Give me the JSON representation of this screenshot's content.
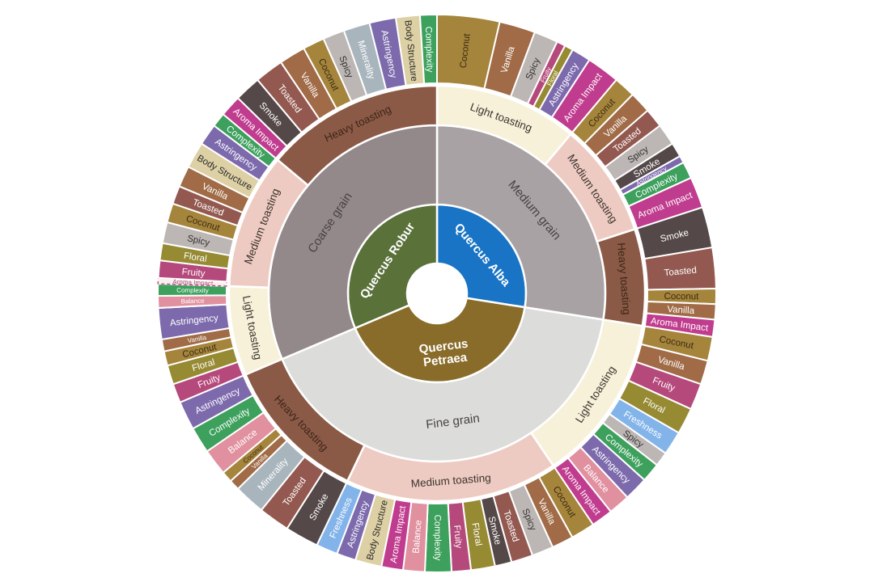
{
  "page": {
    "background": "#ffffff"
  },
  "chart_data": {
    "type": "sunburst",
    "title": "",
    "angle_unit": "degrees clockwise from 12 o'clock",
    "levels": [
      "species",
      "grain",
      "toasting",
      "flavor"
    ],
    "toasting_colors": {
      "Light toasting": "#f7f1da",
      "Medium toasting": "#eecbc2",
      "Heavy toasting": "#8b5a46"
    },
    "flavor_colors": {
      "Coconut": "#a5843c",
      "Vanilla": "#a06b46",
      "Spicy": "#bcb7b5",
      "Fruity": "#b5497b",
      "Floral": "#968a33",
      "Astringency": "#7c6aac",
      "Aroma Impact": "#c03c8e",
      "Complexity": "#3da05c",
      "Smoke": "#544948",
      "Toasted": "#935950",
      "Body Structure": "#ddd0a4",
      "Minerality": "#a9b5bd",
      "Freshness": "#82b4ea",
      "Balance": "#e0909f"
    },
    "flavor_text_colors": {
      "Coconut": "#3b2d12",
      "Spicy": "#33302e",
      "Body Structure": "#2b2b2b",
      "default": "#ffffff"
    },
    "species": [
      {
        "label": "Quercus Alba",
        "color": "#1974c5",
        "start_deg": 0,
        "end_deg": 99,
        "grain": {
          "label": "Medium grain",
          "color": "#a9a2a4"
        },
        "toastings": [
          {
            "label": "Light toasting",
            "start_deg": 0,
            "end_deg": 40,
            "flavors": [
              {
                "label": "Coconut",
                "span": 13
              },
              {
                "label": "Vanilla",
                "span": 7.5
              },
              {
                "label": "Spicy",
                "span": 5
              },
              {
                "label": "Fruity",
                "span": 1.8
              },
              {
                "label": "Floral",
                "span": 1.8
              },
              {
                "label": "Astringency",
                "span": 4
              },
              {
                "label": "Aroma Impact",
                "span": 6.9
              }
            ]
          },
          {
            "label": "Medium toasting",
            "start_deg": 40,
            "end_deg": 72,
            "flavors": [
              {
                "label": "Coconut",
                "span": 4.5
              },
              {
                "label": "Vanilla",
                "span": 4.5
              },
              {
                "label": "Toasted",
                "span": 4
              },
              {
                "label": "Spicy",
                "span": 4.5
              },
              {
                "label": "Smoke",
                "span": 3
              },
              {
                "label": "Astringency",
                "span": 1.5
              },
              {
                "label": "Complexity",
                "span": 3.5
              },
              {
                "label": "Aroma Impact",
                "span": 6.5
              }
            ]
          },
          {
            "label": "Heavy toasting",
            "start_deg": 72,
            "end_deg": 99,
            "flavors": [
              {
                "label": "Smoke",
                "span": 8.5
              },
              {
                "label": "Toasted",
                "span": 8.5
              },
              {
                "label": "Coconut",
                "span": 3.2
              },
              {
                "label": "Vanilla",
                "span": 3.2
              },
              {
                "label": "Aroma Impact",
                "span": 3.6
              }
            ]
          }
        ]
      },
      {
        "label": "Quercus Petraea",
        "color": "#8a6c2a",
        "start_deg": 99,
        "end_deg": 247,
        "grain": {
          "label": "Fine grain",
          "color": "#dcdcda"
        },
        "toastings": [
          {
            "label": "Light toasting",
            "start_deg": 99,
            "end_deg": 146,
            "flavors": [
              {
                "label": "Coconut",
                "span": 5
              },
              {
                "label": "Vanilla",
                "span": 5
              },
              {
                "label": "Fruity",
                "span": 5.5
              },
              {
                "label": "Floral",
                "span": 5.5
              },
              {
                "label": "Freshness",
                "span": 5
              },
              {
                "label": "Spicy",
                "span": 3
              },
              {
                "label": "Complexity",
                "span": 4
              },
              {
                "label": "Astringency",
                "span": 5
              },
              {
                "label": "Balance",
                "span": 4.5
              },
              {
                "label": "Aroma Impact",
                "span": 4.5
              }
            ]
          },
          {
            "label": "Medium toasting",
            "start_deg": 146,
            "end_deg": 205.5,
            "flavors": [
              {
                "label": "Coconut",
                "span": 5
              },
              {
                "label": "Vanilla",
                "span": 4.5
              },
              {
                "label": "Spicy",
                "span": 4.5
              },
              {
                "label": "Toasted",
                "span": 4.5
              },
              {
                "label": "Smoke",
                "span": 3.5
              },
              {
                "label": "Floral",
                "span": 5
              },
              {
                "label": "Fruity",
                "span": 4
              },
              {
                "label": "Complexity",
                "span": 5.5
              },
              {
                "label": "Balance",
                "span": 4.5
              },
              {
                "label": "Aroma Impact",
                "span": 4.5
              },
              {
                "label": "Body Structure",
                "span": 5.5
              },
              {
                "label": "Astringency",
                "span": 4
              },
              {
                "label": "Freshness",
                "span": 4.5
              }
            ]
          },
          {
            "label": "Heavy toasting",
            "start_deg": 205.5,
            "end_deg": 247,
            "flavors": [
              {
                "label": "Smoke",
                "span": 7
              },
              {
                "label": "Toasted",
                "span": 6.5
              },
              {
                "label": "Minerality",
                "span": 6.5
              },
              {
                "label": "Vanilla",
                "span": 2.2
              },
              {
                "label": "Coconut",
                "span": 2.3
              },
              {
                "label": "Balance",
                "span": 5.5
              },
              {
                "label": "Complexity",
                "span": 5.5
              },
              {
                "label": "Astringency",
                "span": 6
              }
            ]
          }
        ]
      },
      {
        "label": "Quercus Robur",
        "color": "#5a7139",
        "start_deg": 247,
        "end_deg": 360,
        "grain": {
          "label": "Coarse grain",
          "color": "#93898b"
        },
        "toastings": [
          {
            "label": "Light toasting",
            "start_deg": 247,
            "end_deg": 272,
            "flavors": [
              {
                "label": "Fruity",
                "span": 4
              },
              {
                "label": "Floral",
                "span": 4
              },
              {
                "label": "Coconut",
                "span": 3
              },
              {
                "label": "Vanilla",
                "span": 2.5
              },
              {
                "label": "Astringency",
                "span": 6.5
              },
              {
                "label": "Balance",
                "span": 2.5
              },
              {
                "label": "Complexity",
                "span": 2.5
              }
            ]
          },
          {
            "label": "Medium toasting",
            "start_deg": 272,
            "end_deg": 310,
            "flavors": [
              {
                "label": "Aroma Impact",
                "span": 1.2,
                "style": "dashed-outline"
              },
              {
                "label": "Fruity",
                "span": 3.6
              },
              {
                "label": "Floral",
                "span": 3.6
              },
              {
                "label": "Spicy",
                "span": 4.4
              },
              {
                "label": "Coconut",
                "span": 4
              },
              {
                "label": "Toasted",
                "span": 3.8
              },
              {
                "label": "Vanilla",
                "span": 4.4
              },
              {
                "label": "Body Structure",
                "span": 5.5
              },
              {
                "label": "Astringency",
                "span": 4.5
              },
              {
                "label": "Complexity",
                "span": 3
              }
            ]
          },
          {
            "label": "Heavy toasting",
            "start_deg": 310,
            "end_deg": 360,
            "flavors": [
              {
                "label": "Aroma Impact",
                "span": 4.5
              },
              {
                "label": "Smoke",
                "span": 5.5
              },
              {
                "label": "Toasted",
                "span": 6
              },
              {
                "label": "Vanilla",
                "span": 5.5
              },
              {
                "label": "Coconut",
                "span": 4.5
              },
              {
                "label": "Spicy",
                "span": 4.5
              },
              {
                "label": "Minerality",
                "span": 5.5
              },
              {
                "label": "Astringency",
                "span": 5.5
              },
              {
                "label": "Body Structure",
                "span": 5
              },
              {
                "label": "Complexity",
                "span": 3.5
              }
            ]
          }
        ]
      }
    ]
  }
}
